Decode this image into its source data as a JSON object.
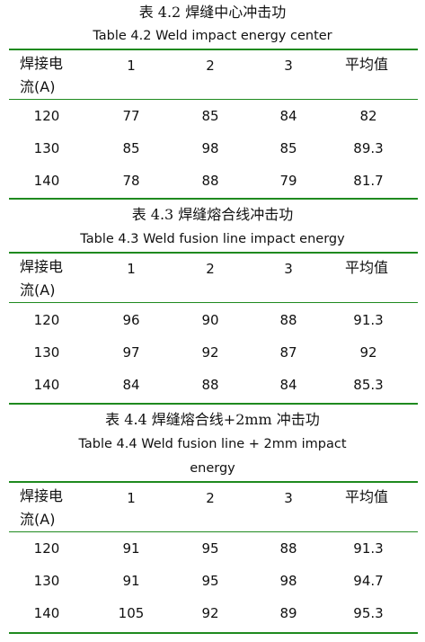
{
  "tables": [
    {
      "caption_zh": "表 4.2  焊缝中心冲击功",
      "caption_en": "Table 4.2 Weld impact energy center",
      "headers": {
        "current_line1": "焊接电",
        "current_line2": "流(A)",
        "c1": "1",
        "c2": "2",
        "c3": "3",
        "avg": "平均值"
      },
      "rows": [
        {
          "current": "120",
          "v1": "77",
          "v2": "85",
          "v3": "84",
          "avg": "82"
        },
        {
          "current": "130",
          "v1": "85",
          "v2": "98",
          "v3": "85",
          "avg": "89.3"
        },
        {
          "current": "140",
          "v1": "78",
          "v2": "88",
          "v3": "79",
          "avg": "81.7"
        }
      ]
    },
    {
      "caption_zh": "表 4.3  焊缝熔合线冲击功",
      "caption_en": "Table 4.3 Weld fusion line impact energy",
      "headers": {
        "current_line1": "焊接电",
        "current_line2": "流(A)",
        "c1": "1",
        "c2": "2",
        "c3": "3",
        "avg": "平均值"
      },
      "rows": [
        {
          "current": "120",
          "v1": "96",
          "v2": "90",
          "v3": "88",
          "avg": "91.3"
        },
        {
          "current": "130",
          "v1": "97",
          "v2": "92",
          "v3": "87",
          "avg": "92"
        },
        {
          "current": "140",
          "v1": "84",
          "v2": "88",
          "v3": "84",
          "avg": "85.3"
        }
      ]
    },
    {
      "caption_zh": "表 4.4  焊缝熔合线+2mm 冲击功",
      "caption_en_line1": "Table 4.4 Weld fusion line + 2mm impact",
      "caption_en_line2": "energy",
      "headers": {
        "current_line1": "焊接电",
        "current_line2": "流(A)",
        "c1": "1",
        "c2": "2",
        "c3": "3",
        "avg": "平均值"
      },
      "rows": [
        {
          "current": "120",
          "v1": "91",
          "v2": "95",
          "v3": "88",
          "avg": "91.3"
        },
        {
          "current": "130",
          "v1": "91",
          "v2": "95",
          "v3": "98",
          "avg": "94.7"
        },
        {
          "current": "140",
          "v1": "105",
          "v2": "92",
          "v3": "89",
          "avg": "95.3"
        }
      ]
    }
  ],
  "colors": {
    "rule": "#1f8a1f",
    "text": "#111111"
  }
}
